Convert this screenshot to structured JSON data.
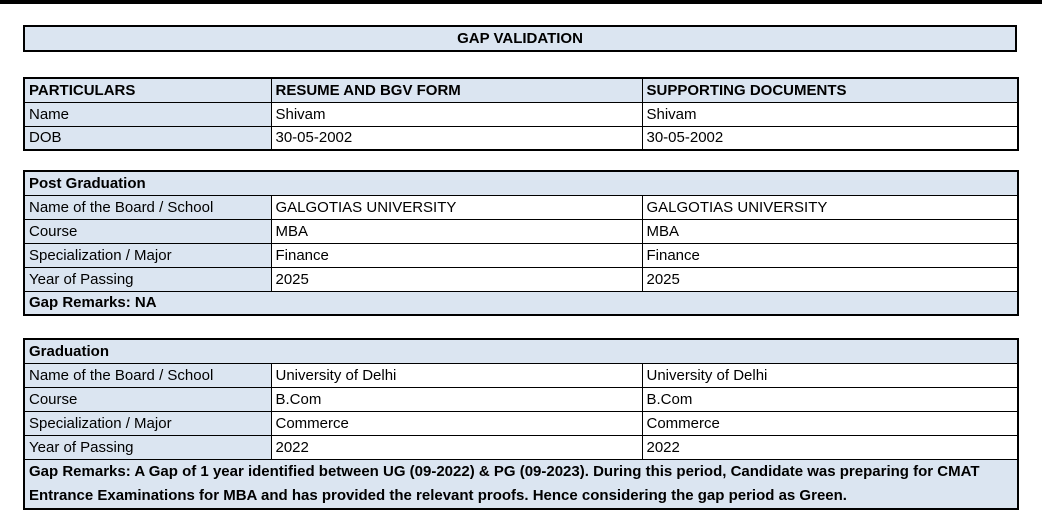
{
  "page": {
    "title": "GAP VALIDATION"
  },
  "colors": {
    "header_fill": "#dbe5f1",
    "border": "#000000",
    "text": "#000000"
  },
  "particulars_table": {
    "headers": [
      "PARTICULARS",
      "RESUME AND BGV FORM",
      "SUPPORTING DOCUMENTS"
    ],
    "rows": [
      {
        "label": "Name",
        "resume": "Shivam",
        "supporting": "Shivam"
      },
      {
        "label": "DOB",
        "resume": "30-05-2002",
        "supporting": "30-05-2002"
      }
    ]
  },
  "post_graduation": {
    "section_title": "Post Graduation",
    "rows": [
      {
        "label": "Name of the Board / School",
        "resume": "GALGOTIAS UNIVERSITY",
        "supporting": "GALGOTIAS UNIVERSITY"
      },
      {
        "label": "Course",
        "resume": "MBA",
        "supporting": "MBA"
      },
      {
        "label": "Specialization / Major",
        "resume": "Finance",
        "supporting": "Finance"
      },
      {
        "label": "Year of Passing",
        "resume": "2025",
        "supporting": "2025"
      }
    ],
    "gap_remarks": "Gap Remarks: NA"
  },
  "graduation": {
    "section_title": "Graduation",
    "rows": [
      {
        "label": "Name of the Board / School",
        "resume": "University of Delhi",
        "supporting": "University of Delhi"
      },
      {
        "label": "Course",
        "resume": "B.Com",
        "supporting": "B.Com"
      },
      {
        "label": "Specialization / Major",
        "resume": "Commerce",
        "supporting": "Commerce"
      },
      {
        "label": "Year of Passing",
        "resume": "2022",
        "supporting": "2022"
      }
    ],
    "gap_remarks": "Gap Remarks: A Gap of 1 year identified between UG (09-2022) & PG (09-2023). During this period, Candidate was preparing for CMAT Entrance Examinations for MBA and has provided the relevant proofs. Hence considering the gap period as Green."
  }
}
